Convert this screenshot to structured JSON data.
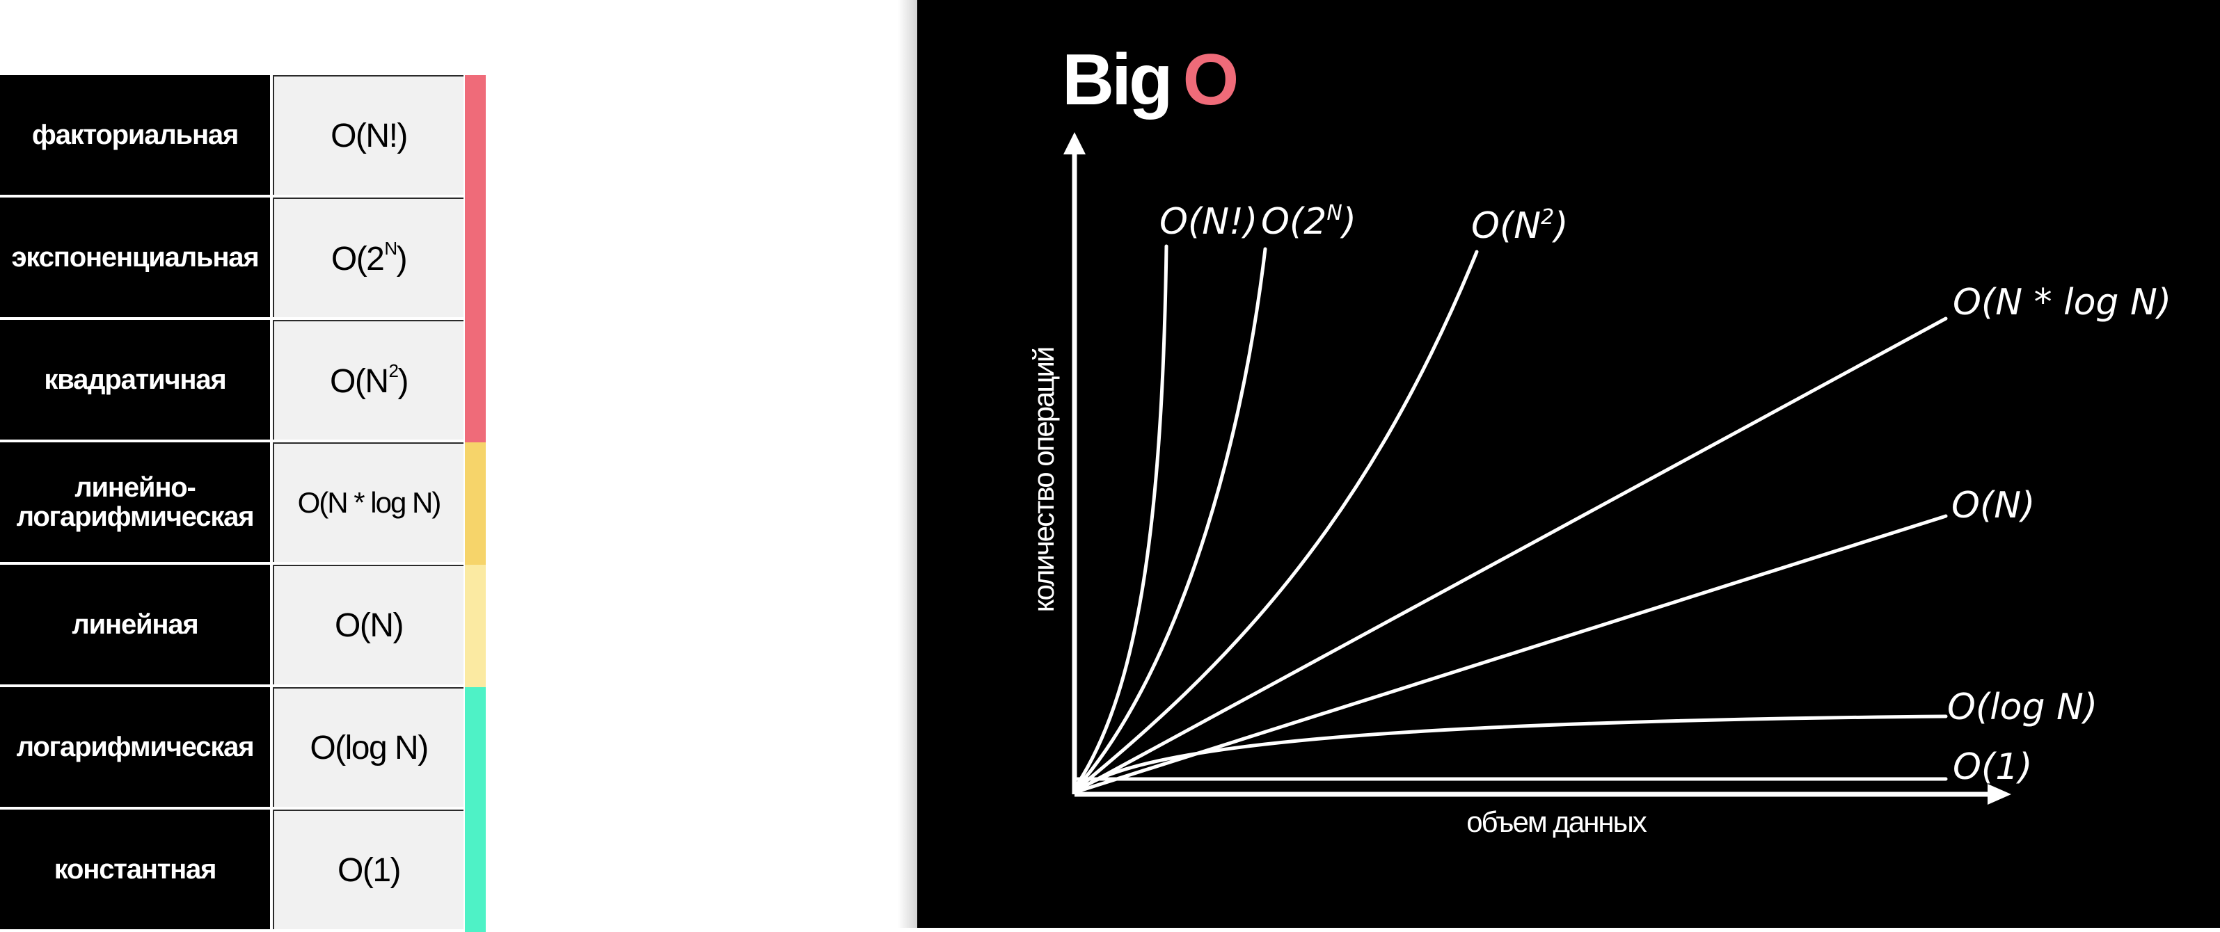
{
  "table": {
    "rows": [
      {
        "name": "факториальная",
        "value": "O(N!)",
        "strip_color": "#ef6b79"
      },
      {
        "name": "экспоненциальная",
        "value_base": "O(2",
        "value_sup": "N",
        "value_tail": ")",
        "strip_color": "#ef6b79"
      },
      {
        "name": "квадратичная",
        "value_base": "O(N",
        "value_sup": "2",
        "value_tail": ")",
        "strip_color": "#ef6b79"
      },
      {
        "name": "линейно-\nлогарифмическая",
        "value": "O(N * log N)",
        "strip_color": "#f6d46a"
      },
      {
        "name": "линейная",
        "value": "O(N)",
        "strip_color": "#fbeaa2"
      },
      {
        "name": "логарифмическая",
        "value": "O(log N)",
        "strip_color": "#4ef2c6"
      },
      {
        "name": "константная",
        "value": "O(1)",
        "strip_color": "#4ef2c6"
      }
    ]
  },
  "chart": {
    "title_main": "Big",
    "title_accent": "O",
    "title_accent_color": "#ef6b79",
    "ylabel": "количество операций",
    "xlabel": "объем данных",
    "labels": {
      "factorial": "O(N!)",
      "exponential_base": "O(2",
      "exponential_sup": "N",
      "exponential_tail": ")",
      "quadratic_base": "O(N",
      "quadratic_sup": "2",
      "quadratic_tail": ")",
      "nlogn": "O(N * log N)",
      "linear": "O(N)",
      "log": "O(log N)",
      "constant": "O(1)"
    }
  }
}
